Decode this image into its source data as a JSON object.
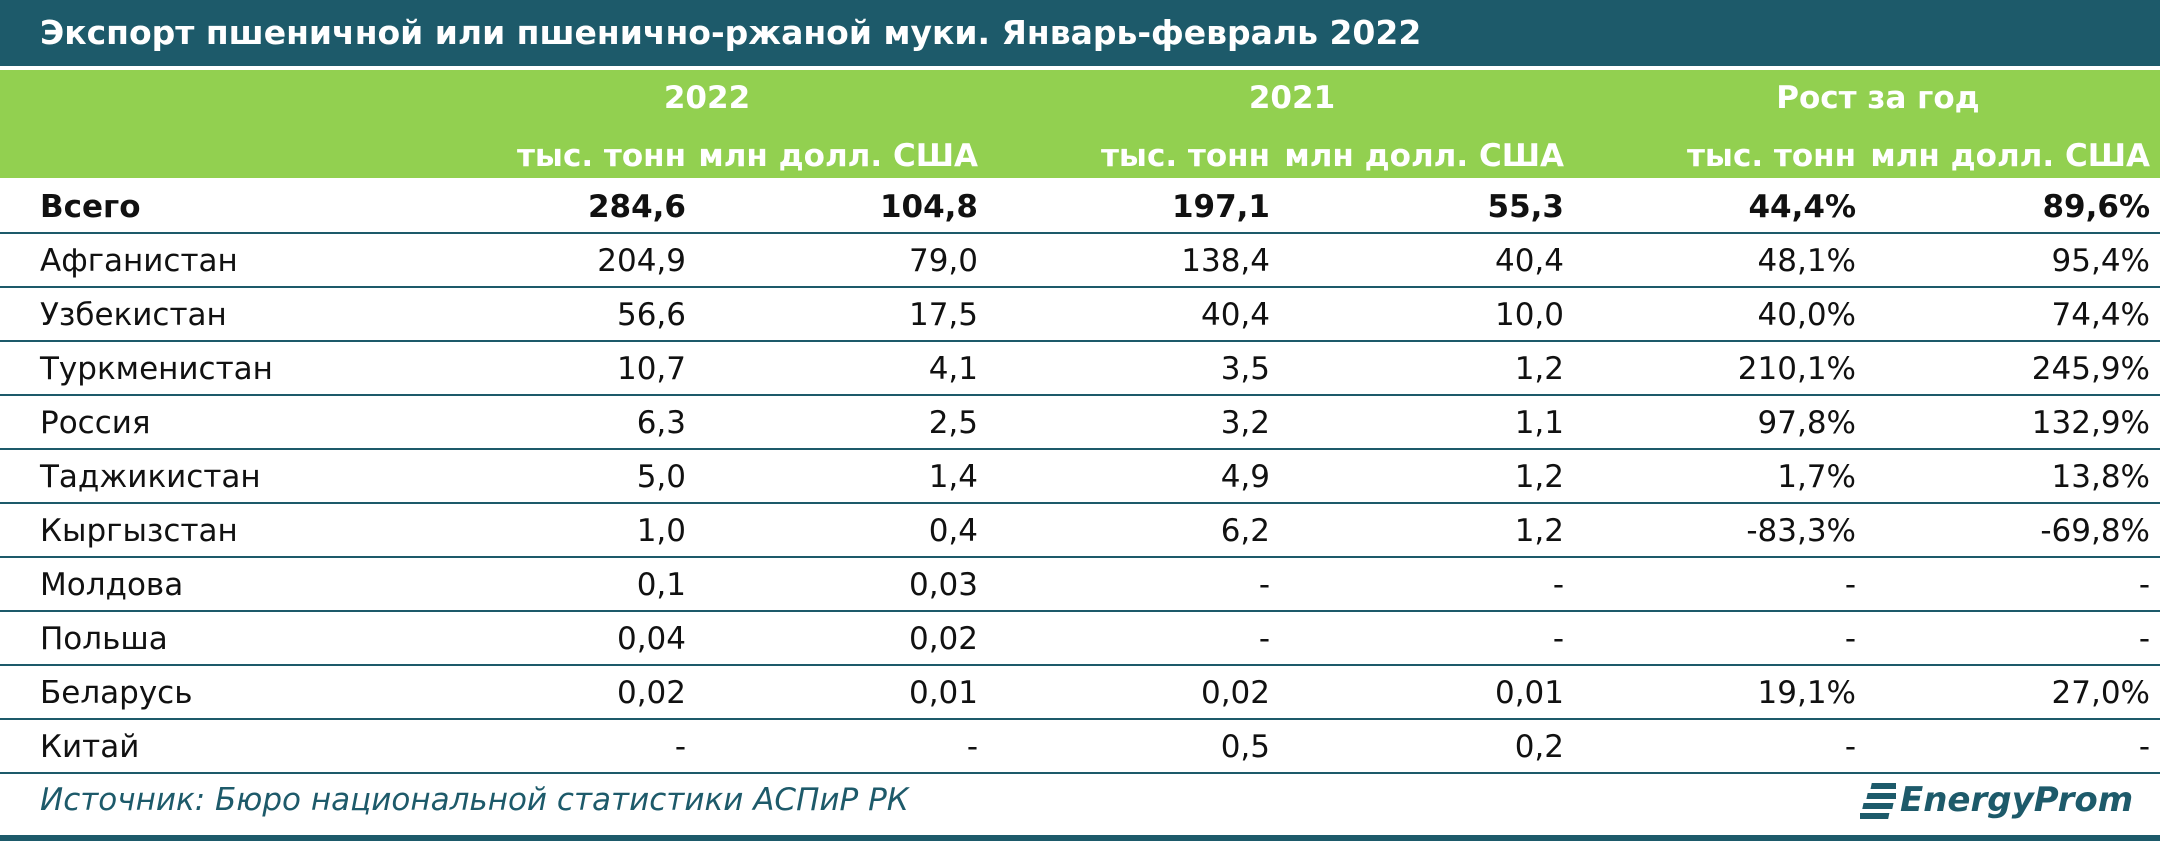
{
  "header": {
    "title": "Экспорт пшеничной или пшенично-ржаной муки. Январь-февраль 2022"
  },
  "table": {
    "groups": [
      "2022",
      "2021",
      "Рост за год"
    ],
    "units": [
      "тыс. тонн",
      "млн долл. США",
      "тыс. тонн",
      "млн долл. США",
      "тыс. тонн",
      "млн долл. США"
    ],
    "rows": [
      [
        "Всего",
        "284,6",
        "104,8",
        "197,1",
        "55,3",
        "44,4%",
        "89,6%"
      ],
      [
        "Афганистан",
        "204,9",
        "79,0",
        "138,4",
        "40,4",
        "48,1%",
        "95,4%"
      ],
      [
        "Узбекистан",
        "56,6",
        "17,5",
        "40,4",
        "10,0",
        "40,0%",
        "74,4%"
      ],
      [
        "Туркменистан",
        "10,7",
        "4,1",
        "3,5",
        "1,2",
        "210,1%",
        "245,9%"
      ],
      [
        "Россия",
        "6,3",
        "2,5",
        "3,2",
        "1,1",
        "97,8%",
        "132,9%"
      ],
      [
        "Таджикистан",
        "5,0",
        "1,4",
        "4,9",
        "1,2",
        "1,7%",
        "13,8%"
      ],
      [
        "Кыргызстан",
        "1,0",
        "0,4",
        "6,2",
        "1,2",
        "-83,3%",
        "-69,8%"
      ],
      [
        "Молдова",
        "0,1",
        "0,03",
        "-",
        "-",
        "-",
        "-"
      ],
      [
        "Польша",
        "0,04",
        "0,02",
        "-",
        "-",
        "-",
        "-"
      ],
      [
        "Беларусь",
        "0,02",
        "0,01",
        "0,02",
        "0,01",
        "19,1%",
        "27,0%"
      ],
      [
        "Китай",
        "-",
        "-",
        "0,5",
        "0,2",
        "-",
        "-"
      ]
    ]
  },
  "footer": {
    "source": "Источник: Бюро национальной статистики АСПиР РК",
    "logo": "EnergyProm"
  }
}
